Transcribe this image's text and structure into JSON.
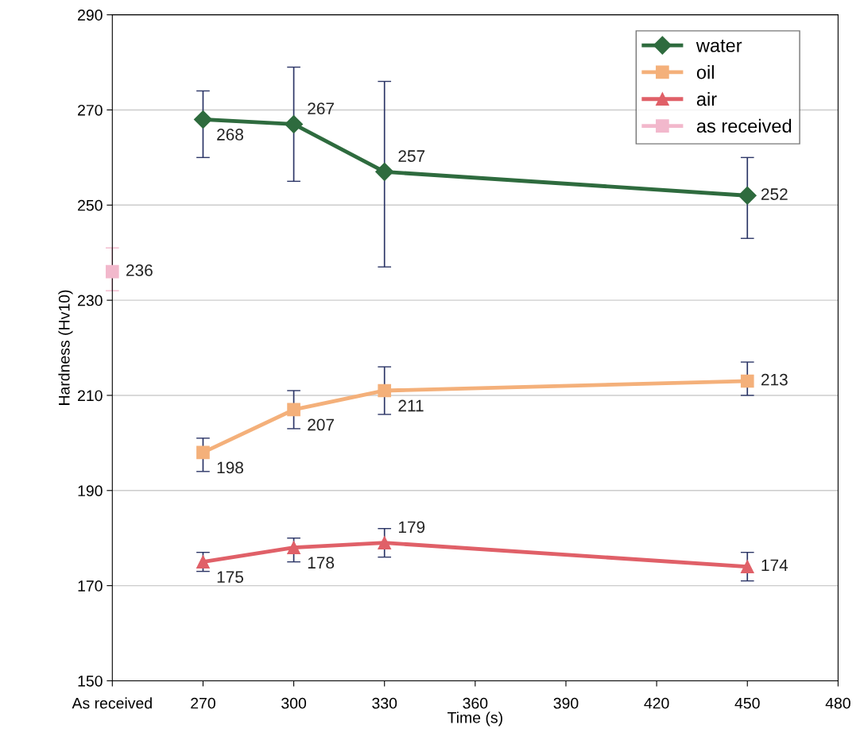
{
  "chart_data": {
    "type": "line",
    "xlabel": "Time (s)",
    "ylabel": "Hardness (Hv10)",
    "xlim": [
      240,
      480
    ],
    "xticks": [
      {
        "value": 240,
        "label": "As received"
      },
      270,
      300,
      330,
      360,
      390,
      420,
      450,
      480
    ],
    "ylim": [
      150,
      290
    ],
    "yticks": [
      150,
      170,
      190,
      210,
      230,
      250,
      270,
      290
    ],
    "grid": "y",
    "legend": "top right",
    "data_labels": true,
    "series": [
      {
        "name": "water",
        "color": "#2e6b3e",
        "marker": "diamond",
        "x": [
          270,
          300,
          330,
          450
        ],
        "values": [
          268,
          267,
          257,
          252
        ],
        "errors": [
          [
            260,
            274
          ],
          [
            255,
            279
          ],
          [
            237,
            276
          ],
          [
            243,
            260
          ]
        ]
      },
      {
        "name": "oil",
        "color": "#f4b07a",
        "marker": "square",
        "x": [
          270,
          300,
          330,
          450
        ],
        "values": [
          198,
          207,
          211,
          213
        ],
        "errors": [
          [
            194,
            201
          ],
          [
            203,
            211
          ],
          [
            206,
            216
          ],
          [
            210,
            217
          ]
        ]
      },
      {
        "name": "air",
        "color": "#e06068",
        "marker": "triangle",
        "x": [
          270,
          300,
          330,
          450
        ],
        "values": [
          175,
          178,
          179,
          174
        ],
        "errors": [
          [
            173,
            177
          ],
          [
            175,
            180
          ],
          [
            176,
            182
          ],
          [
            171,
            177
          ]
        ]
      },
      {
        "name": "as received",
        "color": "#f2b8cc",
        "marker": "square",
        "x": [
          240
        ],
        "values": [
          236
        ],
        "errors": [
          [
            232,
            241
          ]
        ]
      }
    ]
  }
}
